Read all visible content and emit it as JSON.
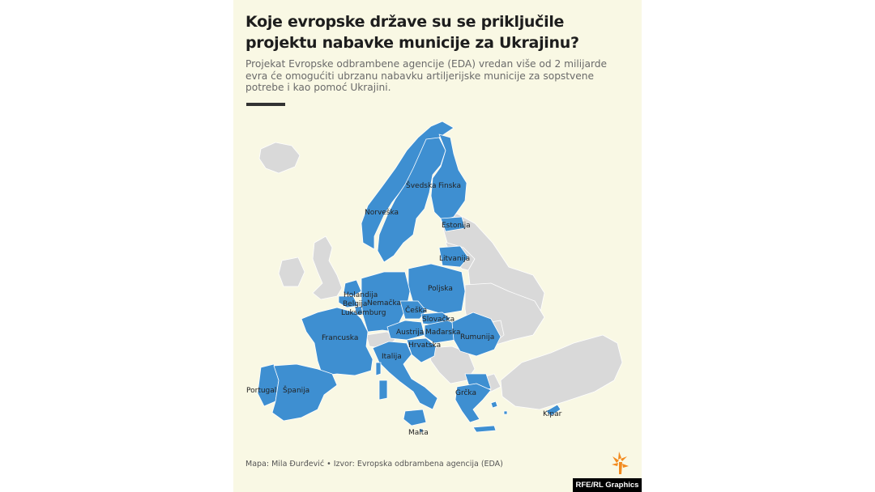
{
  "title": "Koje evropske države su se priključile projektu nabavke municije za Ukrajinu?",
  "subtitle": "Projekat Evropske odbrambene agencije (EDA) vredan više od 2 milijarde evra će omogućiti ubrzanu nabavku artiljerijske municije za sopstvene potrebe i kao pomoć Ukrajini.",
  "credit": "Mapa: Mila Đurđević • Izvor: Evropska odbrambena agencija (EDA)",
  "brand": "RFE/RL Graphics",
  "colors": {
    "participating": "#3e8fd1",
    "other": "#d9d9d9",
    "background": "#f9f8e4",
    "brand_logo": "#f28a1e"
  },
  "countries": {
    "svedska": "Švedska",
    "finska": "Finska",
    "norveska": "Norveška",
    "estonija": "Estonija",
    "litvanija": "Litvanija",
    "poljska": "Poljska",
    "holandija": "Holandija",
    "belgija": "Belgija",
    "nemacka": "Nemačka",
    "luksemburg": "Luksemburg",
    "ceska": "Češka",
    "slovacka": "Slovačka",
    "francuska": "Francuska",
    "austrija": "Austrija",
    "madjarska": "Mađarska",
    "rumunija": "Rumunija",
    "hrvatska": "Hrvatska",
    "italija": "Italija",
    "portugal": "Portugal",
    "spanija": "Španija",
    "grcka": "Grčka",
    "kipar": "Kipar",
    "malta": "Malta"
  }
}
